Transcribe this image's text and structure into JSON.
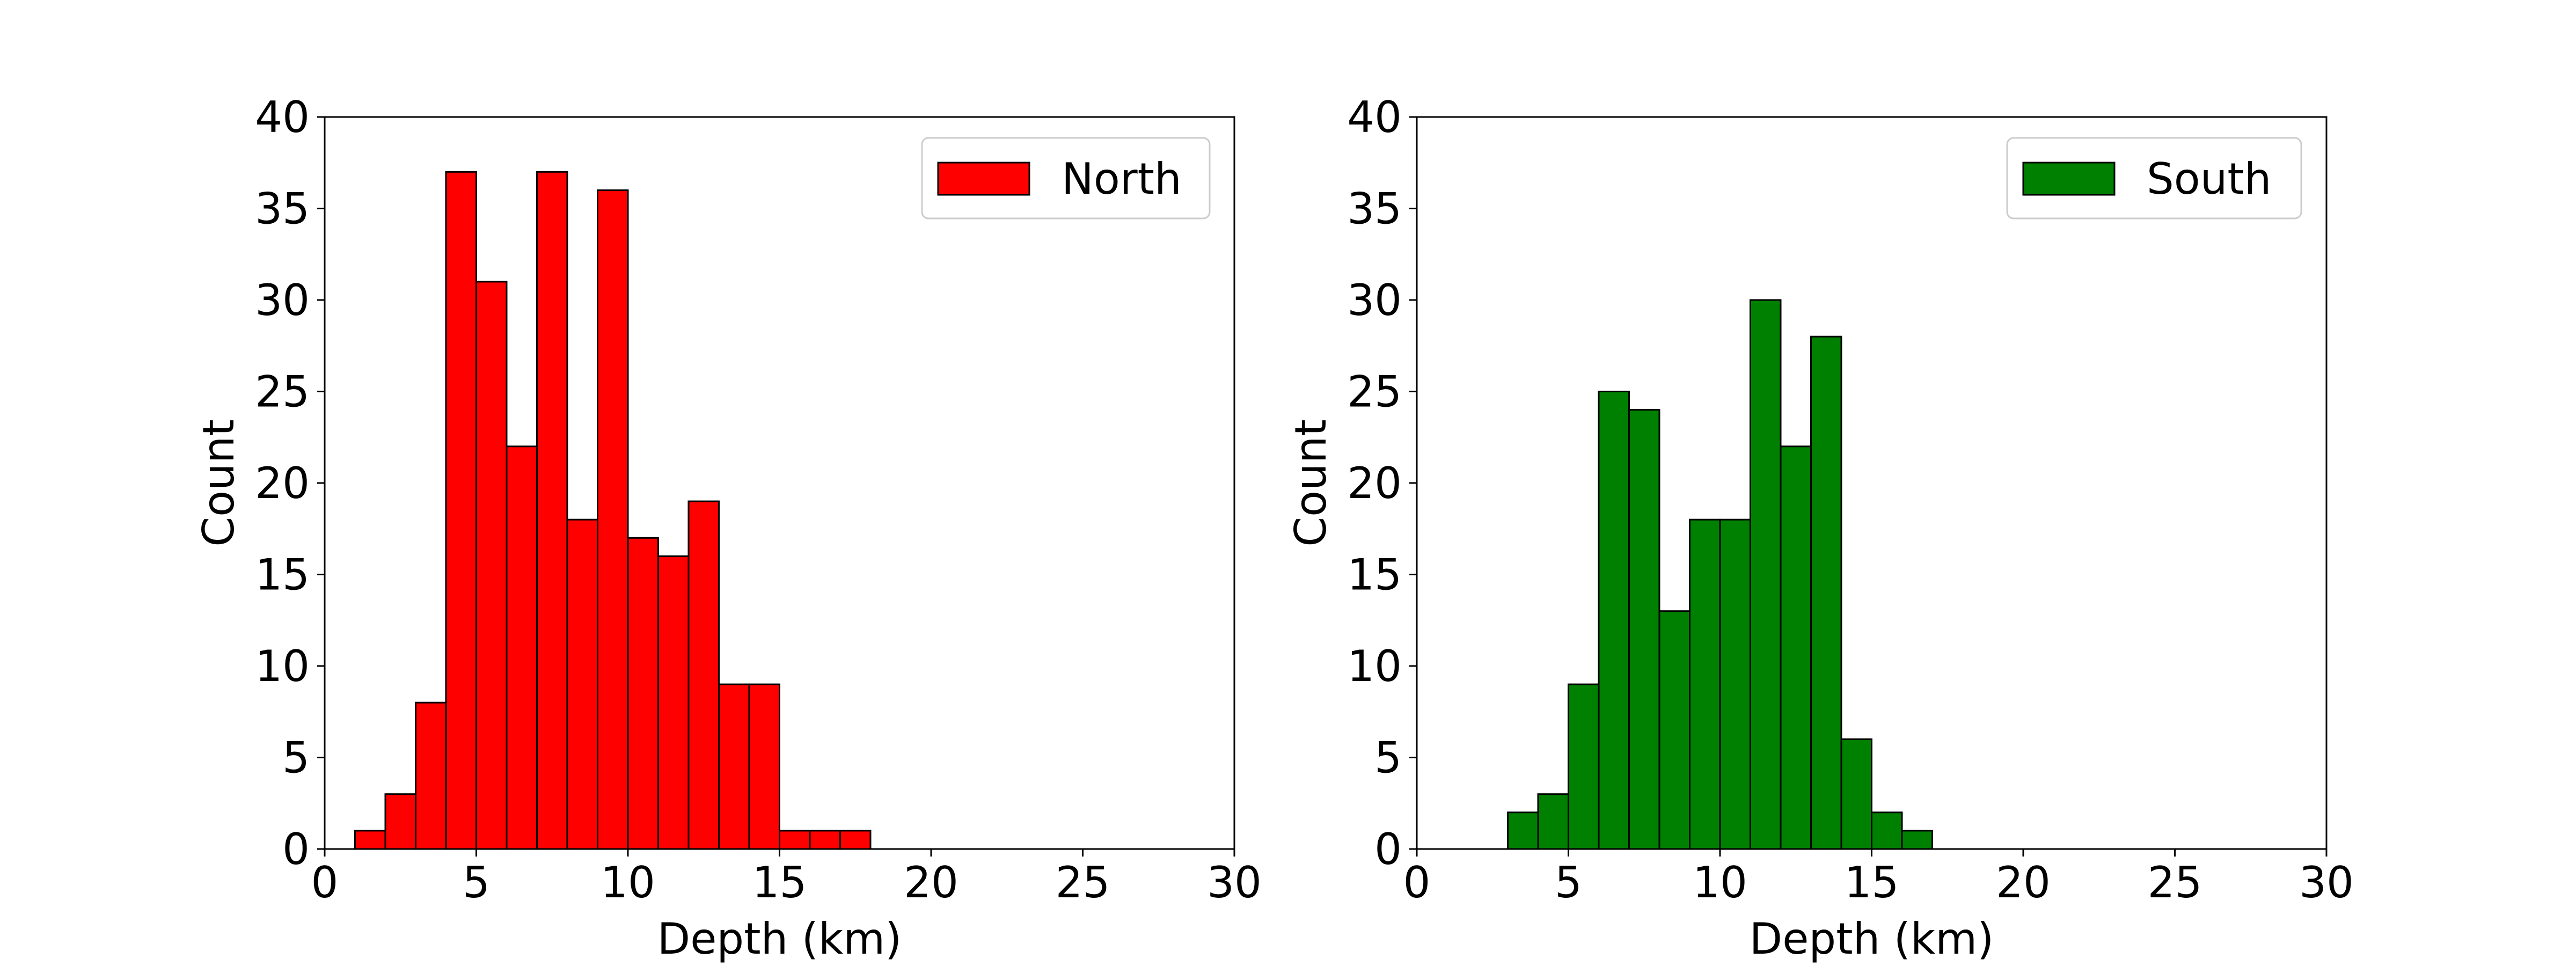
{
  "chart_data": [
    {
      "type": "bar",
      "subtype": "histogram",
      "xlabel": "Depth (km)",
      "ylabel": "Count",
      "xlim": [
        0,
        30
      ],
      "ylim": [
        0,
        40
      ],
      "xticks": [
        0,
        5,
        10,
        15,
        20,
        25,
        30
      ],
      "yticks": [
        0,
        5,
        10,
        15,
        20,
        25,
        30,
        35,
        40
      ],
      "bin_edges": [
        1,
        2,
        3,
        4,
        5,
        6,
        7,
        8,
        9,
        10,
        11,
        12,
        13,
        14,
        15,
        16,
        17,
        18,
        19,
        20,
        21,
        22,
        23,
        24,
        25,
        26,
        27,
        28,
        29
      ],
      "series": [
        {
          "name": "North",
          "color": "#ff0000",
          "values": [
            1,
            3,
            8,
            37,
            31,
            22,
            37,
            18,
            36,
            17,
            16,
            19,
            9,
            9,
            1,
            1,
            1,
            0,
            0,
            0,
            0,
            0,
            0,
            0,
            0,
            0,
            0,
            0
          ]
        }
      ],
      "grid": false,
      "legend": "upper-right"
    },
    {
      "type": "bar",
      "subtype": "histogram",
      "xlabel": "Depth (km)",
      "ylabel": "Count",
      "xlim": [
        0,
        30
      ],
      "ylim": [
        0,
        40
      ],
      "xticks": [
        0,
        5,
        10,
        15,
        20,
        25,
        30
      ],
      "yticks": [
        0,
        5,
        10,
        15,
        20,
        25,
        30,
        35,
        40
      ],
      "bin_edges": [
        3,
        4,
        5,
        6,
        7,
        8,
        9,
        10,
        11,
        12,
        13,
        14,
        15,
        16,
        17,
        18,
        19,
        20,
        21,
        22,
        23,
        24,
        25,
        26,
        27,
        28,
        29
      ],
      "series": [
        {
          "name": "South",
          "color": "#008000",
          "values": [
            2,
            3,
            9,
            25,
            24,
            13,
            18,
            18,
            30,
            22,
            28,
            6,
            2,
            1,
            0,
            0,
            0,
            0,
            0,
            0,
            0,
            0,
            0,
            0,
            0,
            0
          ]
        }
      ],
      "grid": false,
      "legend": "upper-right"
    }
  ]
}
